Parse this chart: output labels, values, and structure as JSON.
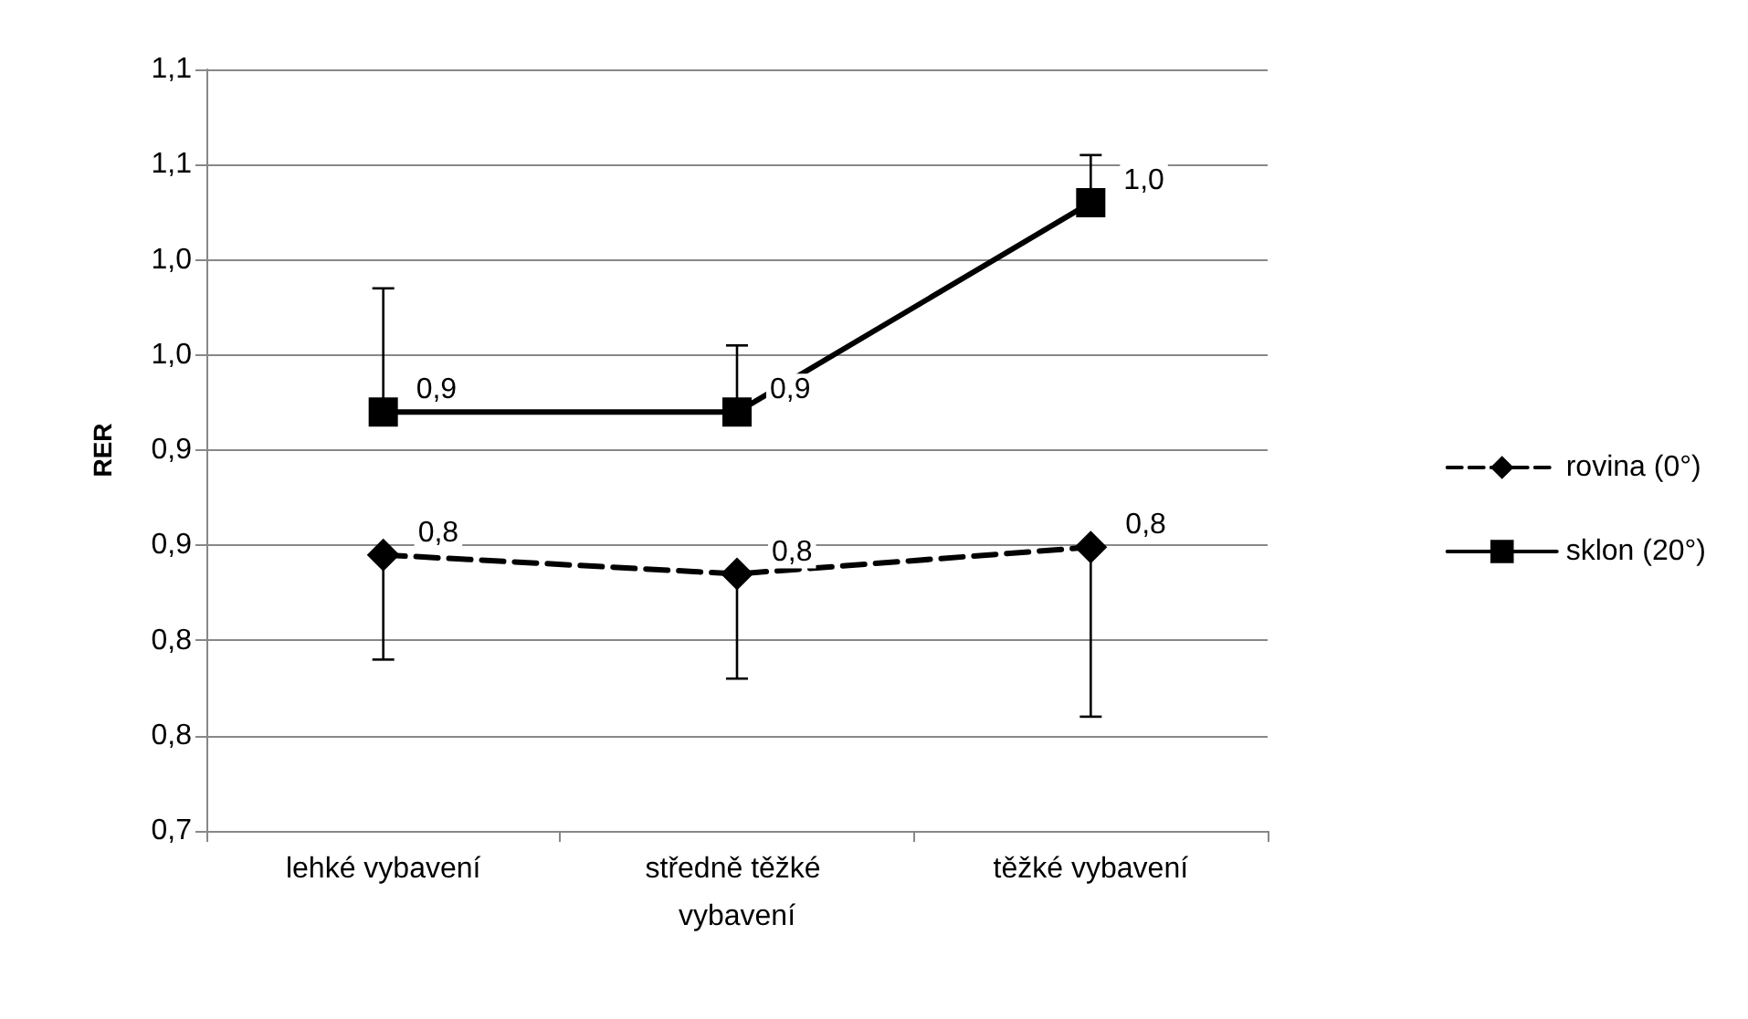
{
  "chart_data": {
    "type": "line",
    "ylabel": "RER",
    "categories": [
      "lehké vybavení",
      "středně těžké vybavení",
      "těžké vybavení"
    ],
    "series": [
      {
        "name": "rovina (0°)",
        "color": "#000000",
        "marker": "diamond",
        "line_style": "dashed",
        "values": [
          0.845,
          0.835,
          0.849
        ],
        "errors": [
          [
            0.79,
            0.845
          ],
          [
            0.78,
            0.835
          ],
          [
            0.76,
            0.849
          ]
        ],
        "value_labels": [
          "0,8",
          "0,8",
          "0,8"
        ]
      },
      {
        "name": "sklon (20°)",
        "color": "#000000",
        "marker": "square",
        "line_style": "solid",
        "values": [
          0.92,
          0.92,
          1.03
        ],
        "errors": [
          [
            0.92,
            0.985
          ],
          [
            0.92,
            0.955
          ],
          [
            1.03,
            1.055
          ]
        ],
        "value_labels": [
          "0,9",
          "0,9",
          "1,0"
        ]
      }
    ],
    "ylim": [
      0.7,
      1.1
    ],
    "yticks": [
      {
        "value": 0.7,
        "label": "0,7"
      },
      {
        "value": 0.75,
        "label": "0,8"
      },
      {
        "value": 0.8,
        "label": "0,8"
      },
      {
        "value": 0.85,
        "label": "0,9"
      },
      {
        "value": 0.9,
        "label": "0,9"
      },
      {
        "value": 0.95,
        "label": "1,0"
      },
      {
        "value": 1.0,
        "label": "1,0"
      },
      {
        "value": 1.05,
        "label": "1,1"
      },
      {
        "value": 1.1,
        "label": "1,1"
      }
    ],
    "grid": "y",
    "legend": "right"
  }
}
